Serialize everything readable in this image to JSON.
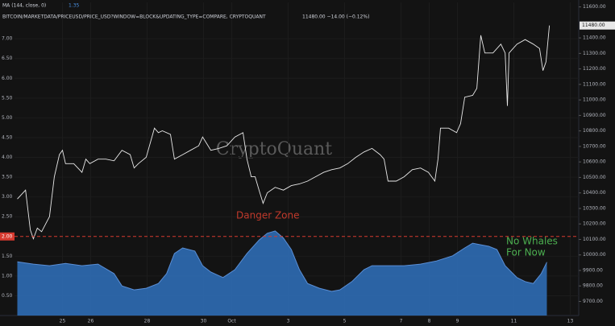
{
  "chart_data": {
    "type": "line",
    "legend_indicator": "MA (144, close, 0)",
    "legend_indicator_value": "1.35",
    "legend_symbol": "BITCOIN/MARKETDATA/PRICEUSD/PRICE_USD?WINDOW=BLOCK&UPDATING_TYPE=COMPARE, CRYPTOQUANT",
    "legend_symbol_value": "11480.00  −14.00 (−0.12%)",
    "watermark": "CryptoQuant",
    "annotations": {
      "danger": "Danger Zone",
      "whales": [
        "No Whales",
        "For Now"
      ]
    },
    "danger_level": {
      "value": 2,
      "label": "2.00",
      "color": "#d63a2f"
    },
    "xlim": [
      23.3,
      43.3
    ],
    "xticks": [
      25,
      26,
      28,
      30,
      {
        "value": 31,
        "label": "Oct"
      },
      {
        "value": 33,
        "label": "3"
      },
      {
        "value": 35,
        "label": "5"
      },
      {
        "value": 37,
        "label": "7"
      },
      {
        "value": 38,
        "label": "8"
      },
      {
        "value": 39,
        "label": "9"
      },
      {
        "value": 41,
        "label": "11"
      },
      {
        "value": 43,
        "label": "13"
      }
    ],
    "ylim": [
      0,
      7.92
    ],
    "yticks": [
      {
        "value": 0.5,
        "label": "0.50"
      },
      {
        "value": 1,
        "label": "1.00"
      },
      {
        "value": 1.5,
        "label": "1.50"
      },
      {
        "value": 2.5,
        "label": "2.50"
      },
      {
        "value": 3,
        "label": "3.00"
      },
      {
        "value": 3.5,
        "label": "3.50"
      },
      {
        "value": 4,
        "label": "4.00"
      },
      {
        "value": 4.5,
        "label": "4.50"
      },
      {
        "value": 5,
        "label": "5.00"
      },
      {
        "value": 5.5,
        "label": "5.50"
      },
      {
        "value": 6,
        "label": "6.00"
      },
      {
        "value": 6.5,
        "label": "6.50"
      },
      {
        "value": 7,
        "label": "7.00"
      }
    ],
    "y2lim": [
      9609,
      11629
    ],
    "y2ticks": [
      {
        "value": 9700,
        "label": "9700.00"
      },
      {
        "value": 9800,
        "label": "9800.00"
      },
      {
        "value": 9900,
        "label": "9900.00"
      },
      {
        "value": 10000,
        "label": "10000.00"
      },
      {
        "value": 10100,
        "label": "10100.00"
      },
      {
        "value": 10200,
        "label": "10200.00"
      },
      {
        "value": 10300,
        "label": "10300.00"
      },
      {
        "value": 10400,
        "label": "10400.00"
      },
      {
        "value": 10500,
        "label": "10500.00"
      },
      {
        "value": 10600,
        "label": "10600.00"
      },
      {
        "value": 10700,
        "label": "10700.00"
      },
      {
        "value": 10800,
        "label": "10800.00"
      },
      {
        "value": 10900,
        "label": "10900.00"
      },
      {
        "value": 11000,
        "label": "11000.00"
      },
      {
        "value": 11100,
        "label": "11100.00"
      },
      {
        "value": 11200,
        "label": "11200.00"
      },
      {
        "value": 11300,
        "label": "11300.00"
      },
      {
        "value": 11400,
        "label": "11400.00"
      },
      {
        "value": 11600,
        "label": "11600.00"
      }
    ],
    "series": [
      {
        "type": "area",
        "axis": "y",
        "color": "#2f6db5",
        "x": [
          23.4,
          23.97,
          24.54,
          25.11,
          25.69,
          26.26,
          26.83,
          27.11,
          27.54,
          27.97,
          28.4,
          28.69,
          28.97,
          29.26,
          29.69,
          29.97,
          30.26,
          30.69,
          31.11,
          31.54,
          31.97,
          32.26,
          32.54,
          32.83,
          33.11,
          33.4,
          33.69,
          34.11,
          34.54,
          34.83,
          35.26,
          35.69,
          35.97,
          36.54,
          37.11,
          37.69,
          38.26,
          38.83,
          39.26,
          39.54,
          39.83,
          40.11,
          40.4,
          40.69,
          41.11,
          41.4,
          41.69,
          41.97,
          42.17
        ],
        "values": [
          1.36,
          1.3,
          1.26,
          1.32,
          1.26,
          1.3,
          1.06,
          0.75,
          0.65,
          0.69,
          0.81,
          1.06,
          1.57,
          1.71,
          1.63,
          1.26,
          1.1,
          0.96,
          1.16,
          1.57,
          1.91,
          2.08,
          2.14,
          1.96,
          1.67,
          1.16,
          0.81,
          0.69,
          0.61,
          0.65,
          0.86,
          1.16,
          1.26,
          1.26,
          1.26,
          1.3,
          1.38,
          1.51,
          1.71,
          1.83,
          1.79,
          1.75,
          1.67,
          1.26,
          0.96,
          0.86,
          0.81,
          1.06,
          1.35
        ]
      },
      {
        "type": "line",
        "axis": "y2",
        "color": "#e8e8e8",
        "last_label": "11480.00",
        "x": [
          23.4,
          23.69,
          23.86,
          23.97,
          24.11,
          24.26,
          24.54,
          24.71,
          24.89,
          25,
          25.11,
          25.4,
          25.69,
          25.83,
          25.97,
          26.26,
          26.54,
          26.83,
          27.11,
          27.4,
          27.54,
          27.69,
          27.97,
          28.26,
          28.4,
          28.54,
          28.83,
          28.97,
          29.26,
          29.54,
          29.83,
          29.97,
          30.26,
          30.54,
          30.83,
          31.11,
          31.4,
          31.54,
          31.69,
          31.83,
          31.97,
          32.11,
          32.26,
          32.54,
          32.83,
          33.11,
          33.4,
          33.69,
          33.97,
          34.26,
          34.54,
          34.83,
          35.11,
          35.4,
          35.69,
          35.97,
          36.26,
          36.4,
          36.54,
          36.83,
          37.11,
          37.4,
          37.69,
          37.97,
          38.2,
          38.31,
          38.4,
          38.69,
          38.97,
          39.11,
          39.26,
          39.54,
          39.69,
          39.83,
          39.97,
          40.26,
          40.54,
          40.69,
          40.77,
          40.83,
          41.11,
          41.4,
          41.69,
          41.91,
          42.03,
          42.14,
          42.26
        ],
        "values": [
          10361,
          10418,
          10162,
          10104,
          10173,
          10150,
          10247,
          10504,
          10647,
          10675,
          10589,
          10589,
          10533,
          10618,
          10589,
          10618,
          10618,
          10607,
          10675,
          10647,
          10561,
          10589,
          10630,
          10818,
          10789,
          10801,
          10778,
          10618,
          10647,
          10675,
          10704,
          10761,
          10675,
          10687,
          10704,
          10761,
          10789,
          10618,
          10504,
          10504,
          10418,
          10333,
          10401,
          10436,
          10418,
          10447,
          10458,
          10476,
          10504,
          10533,
          10550,
          10561,
          10589,
          10630,
          10664,
          10687,
          10647,
          10618,
          10476,
          10476,
          10504,
          10550,
          10561,
          10533,
          10476,
          10618,
          10818,
          10818,
          10789,
          10847,
          11018,
          11029,
          11075,
          11417,
          11303,
          11303,
          11360,
          11303,
          10961,
          11303,
          11360,
          11389,
          11360,
          11332,
          11189,
          11246,
          11480
        ]
      }
    ]
  }
}
